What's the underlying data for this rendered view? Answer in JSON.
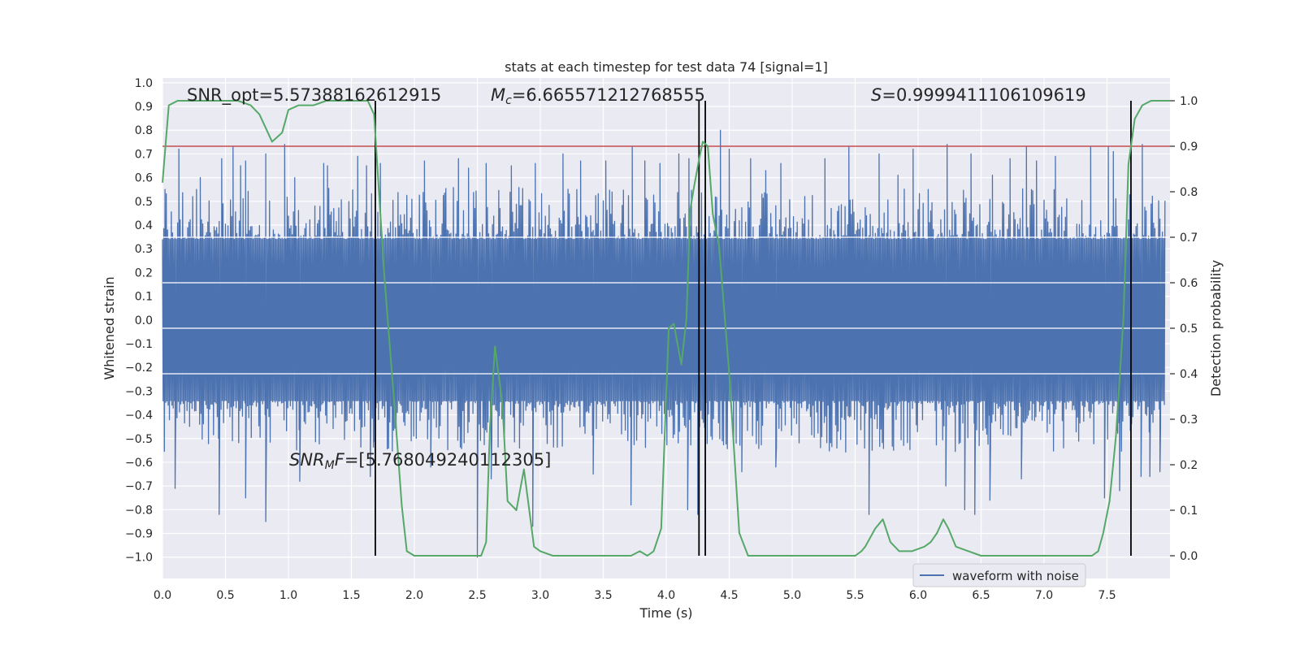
{
  "chart_data": {
    "type": "line",
    "title": "stats at each timestep for test data 74 [signal=1]",
    "xlabel": "Time (s)",
    "ylabel_left": "Whitened strain",
    "ylabel_right": "Detection probability",
    "xlim": [
      0.0,
      8.0
    ],
    "ylim_left": [
      -1.09,
      1.02
    ],
    "ylim_right": [
      -0.05,
      1.05
    ],
    "x_ticks": [
      "0.0",
      "0.5",
      "1.0",
      "1.5",
      "2.0",
      "2.5",
      "3.0",
      "3.5",
      "4.0",
      "4.5",
      "5.0",
      "5.5",
      "6.0",
      "6.5",
      "7.0",
      "7.5"
    ],
    "y_ticks_left": [
      "1.0",
      "0.9",
      "0.8",
      "0.7",
      "0.6",
      "0.5",
      "0.4",
      "0.3",
      "0.2",
      "0.1",
      "0.0",
      "−0.1",
      "−0.2",
      "−0.3",
      "−0.4",
      "−0.5",
      "−0.6",
      "−0.7",
      "−0.8",
      "−0.9",
      "−1.0"
    ],
    "y_ticks_right": [
      "1.0",
      "0.9",
      "0.8",
      "0.7",
      "0.6",
      "0.5",
      "0.4",
      "0.3",
      "0.2",
      "0.1",
      "0.0"
    ],
    "grid": true,
    "legend": {
      "placement": "lower-right",
      "entries": [
        "waveform with noise"
      ]
    },
    "annotations": {
      "snr_opt": "SNR_opt=5.57388162612915",
      "mc_prefix": "M",
      "mc_sub": "c",
      "mc_rest": "=6.665571212768555",
      "s_prefix": "S",
      "s_rest": "=0.9999411106109619",
      "snr_mf_prefix": "SNR",
      "snr_mf_sub": "M",
      "snr_mf_mid": "F",
      "snr_mf_rest": "=[5.768049240112305]"
    },
    "threshold_right": 0.9,
    "vertical_lines_x": [
      1.69,
      4.26,
      4.31,
      7.69
    ],
    "series": [
      {
        "name": "waveform with noise",
        "color": "#4c72b0",
        "axis": "left",
        "dt": 0.005,
        "core_envelope": 0.34,
        "positive_spikes": [
          [
            0.02,
            0.55
          ],
          [
            0.13,
            0.72
          ],
          [
            0.27,
            0.55
          ],
          [
            0.3,
            0.6
          ],
          [
            0.47,
            0.68
          ],
          [
            0.56,
            0.73
          ],
          [
            0.62,
            0.65
          ],
          [
            0.66,
            0.67
          ],
          [
            0.82,
            0.7
          ],
          [
            0.97,
            0.74
          ],
          [
            1.05,
            0.6
          ],
          [
            1.28,
            0.66
          ],
          [
            1.31,
            0.65
          ],
          [
            1.55,
            0.69
          ],
          [
            1.62,
            0.65
          ],
          [
            1.73,
            0.66
          ],
          [
            2.08,
            0.67
          ],
          [
            2.35,
            0.68
          ],
          [
            2.43,
            0.64
          ],
          [
            2.57,
            0.66
          ],
          [
            2.77,
            0.65
          ],
          [
            2.96,
            0.66
          ],
          [
            3.18,
            0.7
          ],
          [
            3.32,
            0.67
          ],
          [
            3.52,
            0.67
          ],
          [
            3.73,
            0.73
          ],
          [
            3.83,
            0.67
          ],
          [
            3.95,
            0.66
          ],
          [
            4.1,
            0.7
          ],
          [
            4.18,
            0.68
          ],
          [
            4.43,
            0.8
          ],
          [
            4.5,
            0.72
          ],
          [
            4.67,
            0.68
          ],
          [
            4.79,
            0.63
          ],
          [
            4.91,
            0.66
          ],
          [
            5.26,
            0.68
          ],
          [
            5.45,
            0.73
          ],
          [
            5.69,
            0.7
          ],
          [
            5.84,
            0.61
          ],
          [
            5.96,
            0.72
          ],
          [
            6.08,
            0.55
          ],
          [
            6.23,
            0.74
          ],
          [
            6.42,
            0.7
          ],
          [
            6.59,
            0.61
          ],
          [
            6.73,
            0.68
          ],
          [
            6.86,
            0.73
          ],
          [
            6.94,
            0.67
          ],
          [
            7.09,
            0.69
          ],
          [
            7.37,
            0.73
          ],
          [
            7.51,
            0.73
          ],
          [
            7.55,
            0.71
          ],
          [
            7.78,
            0.74
          ]
        ],
        "negative_spikes": [
          [
            0.1,
            -0.71
          ],
          [
            0.45,
            -0.82
          ],
          [
            0.66,
            -0.75
          ],
          [
            0.82,
            -0.85
          ],
          [
            1.09,
            -0.68
          ],
          [
            1.65,
            -0.66
          ],
          [
            2.13,
            -0.62
          ],
          [
            2.5,
            -1.0
          ],
          [
            2.61,
            -0.67
          ],
          [
            2.94,
            -0.87
          ],
          [
            3.42,
            -0.65
          ],
          [
            3.72,
            -0.78
          ],
          [
            4.17,
            -0.8
          ],
          [
            4.25,
            -0.82
          ],
          [
            4.6,
            -0.64
          ],
          [
            4.87,
            -0.62
          ],
          [
            5.61,
            -0.82
          ],
          [
            6.22,
            -0.7
          ],
          [
            6.37,
            -0.8
          ],
          [
            6.45,
            -0.82
          ],
          [
            6.57,
            -0.76
          ],
          [
            6.82,
            -0.67
          ],
          [
            7.48,
            -0.75
          ],
          [
            7.6,
            -0.72
          ],
          [
            7.77,
            -0.66
          ],
          [
            7.84,
            -0.66
          ],
          [
            7.92,
            -0.64
          ]
        ]
      },
      {
        "name": "detection probability",
        "color": "#55a868",
        "axis": "right",
        "x": [
          0.0,
          0.05,
          0.12,
          0.2,
          0.3,
          0.4,
          0.5,
          0.6,
          0.7,
          0.77,
          0.82,
          0.87,
          0.95,
          1.0,
          1.08,
          1.2,
          1.3,
          1.45,
          1.57,
          1.63,
          1.68,
          1.76,
          1.85,
          1.9,
          1.94,
          2.0,
          2.1,
          2.2,
          2.3,
          2.4,
          2.48,
          2.53,
          2.57,
          2.6,
          2.64,
          2.7,
          2.74,
          2.81,
          2.87,
          2.95,
          3.0,
          3.1,
          3.2,
          3.3,
          3.4,
          3.5,
          3.6,
          3.72,
          3.79,
          3.85,
          3.9,
          3.96,
          4.02,
          4.06,
          4.12,
          4.16,
          4.19,
          4.22,
          4.26,
          4.29,
          4.33,
          4.37,
          4.42,
          4.5,
          4.58,
          4.65,
          4.7,
          4.75,
          4.85,
          5.0,
          5.1,
          5.2,
          5.3,
          5.4,
          5.5,
          5.55,
          5.58,
          5.66,
          5.72,
          5.78,
          5.85,
          5.95,
          6.05,
          6.1,
          6.15,
          6.2,
          6.24,
          6.3,
          6.4,
          6.5,
          6.6,
          6.7,
          6.8,
          6.9,
          7.0,
          7.1,
          7.2,
          7.3,
          7.38,
          7.43,
          7.47,
          7.52,
          7.57,
          7.63,
          7.67,
          7.72,
          7.78,
          7.85,
          8.0
        ],
        "y": [
          0.82,
          0.99,
          1.0,
          1.0,
          1.0,
          1.0,
          1.0,
          1.0,
          0.99,
          0.97,
          0.94,
          0.91,
          0.93,
          0.98,
          0.99,
          0.99,
          1.0,
          1.0,
          1.0,
          1.0,
          0.97,
          0.62,
          0.3,
          0.11,
          0.01,
          0.0,
          0.0,
          0.0,
          0.0,
          0.0,
          0.0,
          0.0,
          0.03,
          0.28,
          0.46,
          0.33,
          0.12,
          0.1,
          0.19,
          0.02,
          0.01,
          0.0,
          0.0,
          0.0,
          0.0,
          0.0,
          0.0,
          0.0,
          0.01,
          0.0,
          0.01,
          0.06,
          0.5,
          0.51,
          0.42,
          0.52,
          0.76,
          0.81,
          0.87,
          0.91,
          0.9,
          0.75,
          0.68,
          0.4,
          0.05,
          0.0,
          0.0,
          0.0,
          0.0,
          0.0,
          0.0,
          0.0,
          0.0,
          0.0,
          0.0,
          0.01,
          0.02,
          0.06,
          0.08,
          0.03,
          0.01,
          0.01,
          0.02,
          0.03,
          0.05,
          0.08,
          0.06,
          0.02,
          0.01,
          0.0,
          0.0,
          0.0,
          0.0,
          0.0,
          0.0,
          0.0,
          0.0,
          0.0,
          0.0,
          0.01,
          0.05,
          0.12,
          0.26,
          0.52,
          0.86,
          0.96,
          0.99,
          1.0,
          1.0
        ]
      }
    ]
  },
  "colors": {
    "axes_bg": "#eaeaf2",
    "grid": "#ffffff",
    "threshold": "#c44e52",
    "vertical_line": "#000000",
    "text": "#262626"
  }
}
